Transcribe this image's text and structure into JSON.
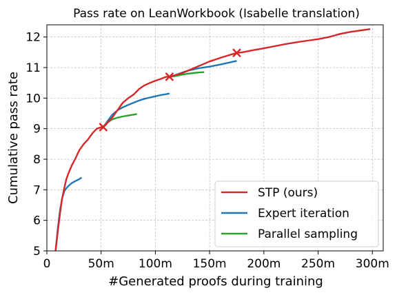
{
  "chart_data": {
    "type": "line",
    "title": "Pass rate on LeanWorkbook (Isabelle translation)",
    "xlabel": "#Generated proofs during training",
    "ylabel": "Cumulative pass rate",
    "xlim": [
      0,
      310
    ],
    "ylim": [
      5,
      12.4
    ],
    "x_ticks": [
      0,
      50,
      100,
      150,
      200,
      250,
      300
    ],
    "x_tick_labels": [
      "0",
      "50m",
      "100m",
      "150m",
      "200m",
      "250m",
      "300m"
    ],
    "y_ticks": [
      5,
      6,
      7,
      8,
      9,
      10,
      11,
      12
    ],
    "y_tick_labels": [
      "5",
      "6",
      "7",
      "8",
      "9",
      "10",
      "11",
      "12"
    ],
    "grid": true,
    "legend_position": "bottom-right",
    "series": [
      {
        "name": "STP (ours)",
        "color": "#d62728",
        "x": [
          8,
          10,
          12,
          14,
          16,
          18,
          20,
          23,
          26,
          30,
          34,
          38,
          42,
          46,
          50,
          53,
          56,
          60,
          65,
          70,
          75,
          80,
          85,
          90,
          95,
          100,
          105,
          110,
          113,
          118,
          125,
          130,
          140,
          150,
          160,
          170,
          175,
          180,
          190,
          200,
          210,
          220,
          230,
          240,
          250,
          260,
          265,
          270,
          280,
          290,
          298
        ],
        "values": [
          5.0,
          5.6,
          6.2,
          6.7,
          7.05,
          7.35,
          7.55,
          7.8,
          8.0,
          8.3,
          8.5,
          8.65,
          8.85,
          9.0,
          9.05,
          9.1,
          9.2,
          9.35,
          9.6,
          9.85,
          10.0,
          10.12,
          10.3,
          10.42,
          10.5,
          10.57,
          10.63,
          10.7,
          10.7,
          10.75,
          10.82,
          10.9,
          11.05,
          11.2,
          11.32,
          11.43,
          11.48,
          11.5,
          11.57,
          11.63,
          11.7,
          11.77,
          11.83,
          11.88,
          11.93,
          12.0,
          12.05,
          12.1,
          12.17,
          12.22,
          12.26
        ]
      },
      {
        "name": "Expert iteration",
        "color": "#1f77b4",
        "x": [
          8,
          10,
          12,
          14,
          16,
          18,
          20,
          23,
          26,
          30,
          32
        ],
        "values": [
          5.0,
          5.7,
          6.3,
          6.7,
          6.95,
          7.05,
          7.13,
          7.22,
          7.28,
          7.35,
          7.4
        ],
        "x2": [
          52,
          56,
          60,
          65,
          70,
          75,
          80,
          85,
          90,
          95,
          100,
          105,
          110,
          113
        ],
        "values2": [
          9.05,
          9.25,
          9.45,
          9.6,
          9.7,
          9.78,
          9.85,
          9.92,
          9.98,
          10.02,
          10.06,
          10.1,
          10.13,
          10.15
        ],
        "x3": [
          113,
          118,
          125,
          130,
          140,
          150,
          160,
          170,
          175
        ],
        "values3": [
          10.7,
          10.75,
          10.84,
          10.9,
          10.98,
          11.03,
          11.1,
          11.18,
          11.22
        ]
      },
      {
        "name": "Parallel sampling",
        "color": "#2ca02c",
        "x": [
          52,
          56,
          60,
          65,
          70,
          75,
          80,
          83
        ],
        "values": [
          9.05,
          9.2,
          9.3,
          9.36,
          9.4,
          9.43,
          9.46,
          9.48
        ],
        "x2": [
          113,
          118,
          125,
          130,
          135,
          140,
          145
        ],
        "values2": [
          10.7,
          10.72,
          10.77,
          10.8,
          10.82,
          10.84,
          10.85
        ]
      }
    ],
    "markers": [
      {
        "x": 52,
        "y": 9.05,
        "color": "#d62728"
      },
      {
        "x": 113,
        "y": 10.7,
        "color": "#d62728"
      },
      {
        "x": 175,
        "y": 11.48,
        "color": "#d62728"
      }
    ]
  }
}
